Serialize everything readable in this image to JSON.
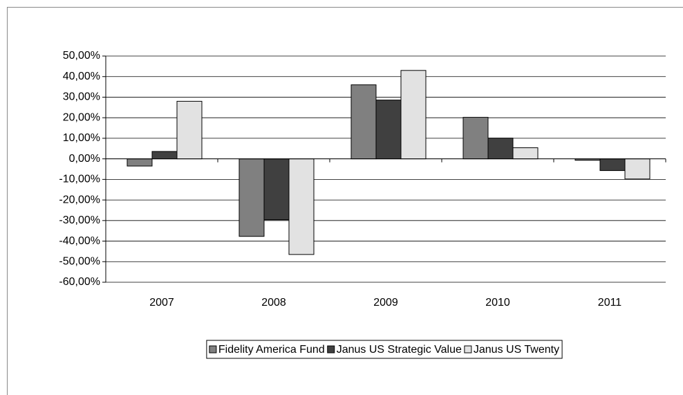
{
  "chart_data": {
    "type": "bar",
    "categories": [
      "2007",
      "2008",
      "2009",
      "2010",
      "2011"
    ],
    "series": [
      {
        "name": "Fidelity America Fund",
        "color": "#808080",
        "values": [
          -3.5,
          -37.7,
          36,
          20.2,
          -0.7
        ]
      },
      {
        "name": "Janus US Strategic Value",
        "color": "#404040",
        "values": [
          3.6,
          -29.6,
          28.6,
          10.1,
          -5.7
        ]
      },
      {
        "name": "Janus US Twenty",
        "color": "#e2e2e2",
        "values": [
          28,
          -46.5,
          43,
          5.4,
          -9.8
        ]
      }
    ],
    "ylim": [
      -60,
      50
    ],
    "yticks": [
      {
        "value": -60,
        "label": "-60,00%"
      },
      {
        "value": -50,
        "label": "-50,00%"
      },
      {
        "value": -40,
        "label": "-40,00%"
      },
      {
        "value": -30,
        "label": "-30,00%"
      },
      {
        "value": -20,
        "label": "-20,00%"
      },
      {
        "value": -10,
        "label": "-10,00%"
      },
      {
        "value": 0,
        "label": "0,00%"
      },
      {
        "value": 10,
        "label": "10,00%"
      },
      {
        "value": 20,
        "label": "20,00%"
      },
      {
        "value": 30,
        "label": "30,00%"
      },
      {
        "value": 40,
        "label": "40,00%"
      },
      {
        "value": 50,
        "label": "50,00%"
      }
    ],
    "grid": true,
    "legend": "bottom"
  }
}
